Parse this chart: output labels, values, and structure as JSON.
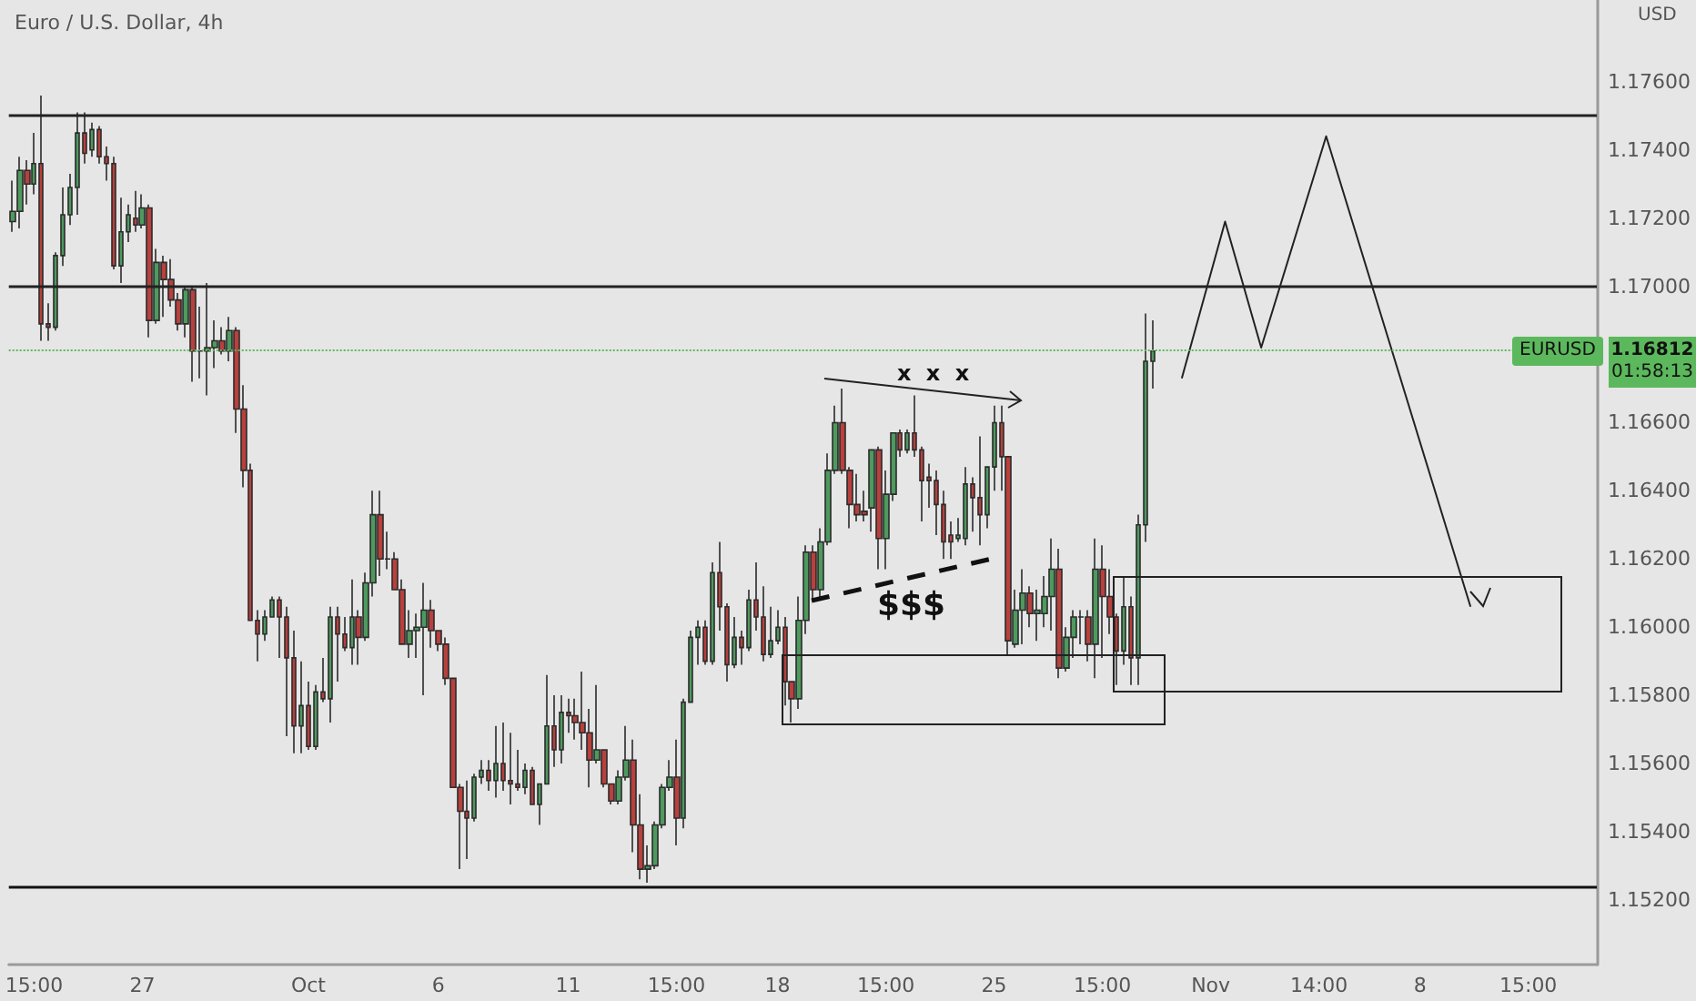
{
  "chart_data": {
    "type": "candlestick",
    "title": "Euro / U.S. Dollar, 4h",
    "ylabel": "USD",
    "annotations": [
      "x x x",
      "$$$",
      "1.16812",
      "01:58:13"
    ],
    "categories": [
      null,
      null,
      null,
      "15:00",
      null,
      null,
      null,
      null,
      null,
      null,
      null,
      null,
      null,
      null,
      null,
      null,
      null,
      null,
      "27",
      null,
      null,
      null,
      null,
      null,
      null,
      null,
      null,
      null,
      null,
      null,
      null,
      null,
      null,
      null,
      null,
      null,
      null,
      null,
      null,
      null,
      null,
      "Oct",
      null,
      null,
      null,
      null,
      null,
      null,
      null,
      null,
      null,
      null,
      null,
      null,
      null,
      null,
      null,
      null,
      null,
      "6",
      null,
      null,
      null,
      null,
      null,
      null,
      null,
      null,
      null,
      null,
      null,
      null,
      null,
      null,
      null,
      null,
      null,
      "11",
      null,
      null,
      null,
      null,
      null,
      null,
      null,
      null,
      null,
      null,
      null,
      null,
      null,
      null,
      "15:00",
      null,
      null,
      null,
      null,
      null,
      null,
      null,
      null,
      null,
      null,
      null,
      null,
      null,
      "18",
      null,
      null,
      null,
      null,
      null,
      null,
      null,
      null,
      null,
      null,
      null,
      null,
      null,
      null,
      "15:00",
      null,
      null,
      null,
      null,
      null,
      null,
      null,
      null,
      null,
      null,
      null,
      null,
      null,
      null,
      "25",
      null,
      null,
      null,
      null,
      null,
      null,
      null,
      null,
      null,
      null,
      null,
      null,
      null,
      null,
      "15:00",
      null,
      null,
      null,
      null,
      null,
      null,
      null,
      null,
      null,
      null,
      null,
      null,
      null,
      null,
      "Nov",
      null,
      null,
      null,
      null,
      null,
      null,
      null,
      null,
      null,
      null,
      null,
      null,
      null,
      null,
      "14:00",
      null,
      null,
      null,
      null,
      null,
      null,
      null,
      null,
      null,
      null,
      null,
      null,
      null,
      "8",
      null,
      null,
      null,
      null,
      null,
      null,
      null,
      null,
      null,
      null,
      null,
      null,
      null,
      null,
      "15:00",
      null,
      null,
      null,
      null,
      null,
      null,
      null,
      null,
      null
    ],
    "ohlc": [
      [
        1.1719,
        1.1731,
        1.1716,
        1.1722
      ],
      [
        1.1722,
        1.1738,
        1.1717,
        1.1734
      ],
      [
        1.1734,
        1.1737,
        1.1724,
        1.173
      ],
      [
        1.173,
        1.1745,
        1.1727,
        1.1736
      ],
      [
        1.1736,
        1.1756,
        1.1684,
        1.1689
      ],
      [
        1.1689,
        1.1695,
        1.1684,
        1.1688
      ],
      [
        1.1688,
        1.171,
        1.1687,
        1.1709
      ],
      [
        1.1709,
        1.1729,
        1.1706,
        1.1721
      ],
      [
        1.1721,
        1.1733,
        1.1718,
        1.1729
      ],
      [
        1.1729,
        1.1751,
        1.1721,
        1.1745
      ],
      [
        1.1745,
        1.1751,
        1.1736,
        1.1739
      ],
      [
        1.174,
        1.1748,
        1.1738,
        1.1746
      ],
      [
        1.1746,
        1.1747,
        1.1736,
        1.1738
      ],
      [
        1.1738,
        1.1741,
        1.1731,
        1.1736
      ],
      [
        1.1736,
        1.1738,
        1.1705,
        1.1706
      ],
      [
        1.1706,
        1.1726,
        1.1701,
        1.1716
      ],
      [
        1.1716,
        1.1724,
        1.1713,
        1.1721
      ],
      [
        1.172,
        1.1728,
        1.1716,
        1.1718
      ],
      [
        1.1718,
        1.1727,
        1.1717,
        1.1723
      ],
      [
        1.1723,
        1.1724,
        1.1685,
        1.169
      ],
      [
        1.169,
        1.1711,
        1.1689,
        1.1707
      ],
      [
        1.1707,
        1.1709,
        1.1691,
        1.1702
      ],
      [
        1.1702,
        1.1708,
        1.1694,
        1.1696
      ],
      [
        1.1696,
        1.1698,
        1.1687,
        1.1689
      ],
      [
        1.1689,
        1.17,
        1.1685,
        1.1699
      ],
      [
        1.1699,
        1.17,
        1.1672,
        1.1681
      ],
      [
        1.1681,
        1.1694,
        1.1673,
        1.1681
      ],
      [
        1.1681,
        1.1701,
        1.1668,
        1.1682
      ],
      [
        1.1682,
        1.169,
        1.1676,
        1.1684
      ],
      [
        1.1684,
        1.1688,
        1.168,
        1.1681
      ],
      [
        1.1681,
        1.1691,
        1.1678,
        1.1687
      ],
      [
        1.1687,
        1.1688,
        1.1657,
        1.1664
      ],
      [
        1.1664,
        1.1671,
        1.1641,
        1.1646
      ],
      [
        1.1646,
        1.1648,
        1.1602,
        1.1602
      ],
      [
        1.1602,
        1.1605,
        1.159,
        1.1598
      ],
      [
        1.1598,
        1.1605,
        1.1596,
        1.1603
      ],
      [
        1.1603,
        1.1609,
        1.1603,
        1.1608
      ],
      [
        1.1608,
        1.1609,
        1.1591,
        1.1603
      ],
      [
        1.1603,
        1.1606,
        1.1568,
        1.1591
      ],
      [
        1.1591,
        1.1599,
        1.1563,
        1.1571
      ],
      [
        1.1571,
        1.159,
        1.1563,
        1.1577
      ],
      [
        1.1577,
        1.1584,
        1.1564,
        1.1565
      ],
      [
        1.1565,
        1.1583,
        1.1564,
        1.1581
      ],
      [
        1.1581,
        1.1591,
        1.1578,
        1.1579
      ],
      [
        1.1579,
        1.1606,
        1.1572,
        1.1603
      ],
      [
        1.1603,
        1.1606,
        1.1584,
        1.1598
      ],
      [
        1.1598,
        1.1603,
        1.1593,
        1.1594
      ],
      [
        1.1594,
        1.1614,
        1.1589,
        1.1603
      ],
      [
        1.1603,
        1.1605,
        1.1589,
        1.1597
      ],
      [
        1.1597,
        1.1616,
        1.1596,
        1.1613
      ],
      [
        1.1613,
        1.164,
        1.1609,
        1.1633
      ],
      [
        1.1633,
        1.164,
        1.1615,
        1.162
      ],
      [
        1.162,
        1.1628,
        1.1617,
        1.162
      ],
      [
        1.162,
        1.1622,
        1.1611,
        1.1611
      ],
      [
        1.1611,
        1.1614,
        1.1595,
        1.1595
      ],
      [
        1.1595,
        1.1605,
        1.1591,
        1.1599
      ],
      [
        1.1599,
        1.1604,
        1.1591,
        1.16
      ],
      [
        1.16,
        1.1613,
        1.158,
        1.1605
      ],
      [
        1.1605,
        1.1608,
        1.1594,
        1.1599
      ],
      [
        1.1599,
        1.1599,
        1.1593,
        1.1595
      ],
      [
        1.1595,
        1.1597,
        1.1583,
        1.1585
      ],
      [
        1.1585,
        1.1585,
        1.1553,
        1.1553
      ],
      [
        1.1553,
        1.1554,
        1.1529,
        1.1546
      ],
      [
        1.1546,
        1.1555,
        1.1532,
        1.1544
      ],
      [
        1.1544,
        1.1557,
        1.1543,
        1.1556
      ],
      [
        1.1556,
        1.1561,
        1.1554,
        1.1558
      ],
      [
        1.1558,
        1.1561,
        1.1552,
        1.1555
      ],
      [
        1.1555,
        1.1571,
        1.155,
        1.156
      ],
      [
        1.156,
        1.1572,
        1.1552,
        1.1555
      ],
      [
        1.1555,
        1.1569,
        1.1548,
        1.1554
      ],
      [
        1.1554,
        1.1564,
        1.1552,
        1.1553
      ],
      [
        1.1553,
        1.156,
        1.1551,
        1.1558
      ],
      [
        1.1558,
        1.1559,
        1.1548,
        1.1548
      ],
      [
        1.1548,
        1.1554,
        1.1542,
        1.1554
      ],
      [
        1.1554,
        1.1586,
        1.1554,
        1.1571
      ],
      [
        1.1571,
        1.158,
        1.1559,
        1.1564
      ],
      [
        1.1564,
        1.158,
        1.156,
        1.1575
      ],
      [
        1.1575,
        1.1579,
        1.1569,
        1.1574
      ],
      [
        1.1574,
        1.1579,
        1.1567,
        1.1572
      ],
      [
        1.1572,
        1.1587,
        1.1564,
        1.1569
      ],
      [
        1.1569,
        1.1576,
        1.1553,
        1.1561
      ],
      [
        1.1561,
        1.1583,
        1.156,
        1.1564
      ],
      [
        1.1564,
        1.1564,
        1.1553,
        1.1554
      ],
      [
        1.1554,
        1.1554,
        1.1548,
        1.1549
      ],
      [
        1.1549,
        1.1558,
        1.1548,
        1.1556
      ],
      [
        1.1556,
        1.1571,
        1.1555,
        1.1561
      ],
      [
        1.1561,
        1.1567,
        1.1534,
        1.1542
      ],
      [
        1.1542,
        1.1551,
        1.1526,
        1.1529
      ],
      [
        1.1529,
        1.1536,
        1.1525,
        1.153
      ],
      [
        1.153,
        1.1543,
        1.1529,
        1.1542
      ],
      [
        1.1542,
        1.1554,
        1.1541,
        1.1553
      ],
      [
        1.1553,
        1.1561,
        1.1552,
        1.1556
      ],
      [
        1.1556,
        1.1567,
        1.1536,
        1.1544
      ],
      [
        1.1544,
        1.1579,
        1.1541,
        1.1578
      ],
      [
        1.1578,
        1.1599,
        1.1578,
        1.1597
      ],
      [
        1.1597,
        1.1602,
        1.1589,
        1.16
      ],
      [
        1.16,
        1.1602,
        1.1589,
        1.159
      ],
      [
        1.159,
        1.1619,
        1.1589,
        1.1616
      ],
      [
        1.1616,
        1.1625,
        1.1599,
        1.1606
      ],
      [
        1.1606,
        1.1607,
        1.1584,
        1.1589
      ],
      [
        1.1589,
        1.1603,
        1.1588,
        1.1597
      ],
      [
        1.1597,
        1.1599,
        1.1589,
        1.1594
      ],
      [
        1.1594,
        1.1611,
        1.1593,
        1.1608
      ],
      [
        1.1608,
        1.1619,
        1.1599,
        1.1603
      ],
      [
        1.1603,
        1.1612,
        1.159,
        1.1592
      ],
      [
        1.1592,
        1.1606,
        1.1591,
        1.1596
      ],
      [
        1.1596,
        1.1605,
        1.1595,
        1.16
      ],
      [
        1.16,
        1.1603,
        1.1577,
        1.1584
      ],
      [
        1.1584,
        1.1584,
        1.1572,
        1.1579
      ],
      [
        1.1579,
        1.1609,
        1.1576,
        1.1602
      ],
      [
        1.1602,
        1.1624,
        1.1598,
        1.1622
      ],
      [
        1.1622,
        1.1624,
        1.1608,
        1.1611
      ],
      [
        1.1611,
        1.1629,
        1.1608,
        1.1625
      ],
      [
        1.1625,
        1.1651,
        1.1624,
        1.1646
      ],
      [
        1.1646,
        1.1665,
        1.1645,
        1.166
      ],
      [
        1.166,
        1.167,
        1.1645,
        1.1646
      ],
      [
        1.1646,
        1.1647,
        1.1629,
        1.1636
      ],
      [
        1.1636,
        1.1645,
        1.1631,
        1.1633
      ],
      [
        1.1634,
        1.164,
        1.1631,
        1.1633
      ],
      [
        1.1635,
        1.1652,
        1.1628,
        1.1652
      ],
      [
        1.1652,
        1.1653,
        1.1617,
        1.1626
      ],
      [
        1.1626,
        1.1646,
        1.1617,
        1.1639
      ],
      [
        1.1639,
        1.1657,
        1.1637,
        1.1657
      ],
      [
        1.1657,
        1.1658,
        1.165,
        1.1652
      ],
      [
        1.1652,
        1.1658,
        1.1651,
        1.1657
      ],
      [
        1.1657,
        1.1668,
        1.165,
        1.1652
      ],
      [
        1.1652,
        1.1653,
        1.1631,
        1.1643
      ],
      [
        1.1644,
        1.1648,
        1.1635,
        1.1643
      ],
      [
        1.1643,
        1.1646,
        1.1627,
        1.1636
      ],
      [
        1.1636,
        1.164,
        1.162,
        1.1625
      ],
      [
        1.1627,
        1.1631,
        1.162,
        1.1625
      ],
      [
        1.1626,
        1.1632,
        1.1625,
        1.1627
      ],
      [
        1.1626,
        1.1647,
        1.1624,
        1.1642
      ],
      [
        1.1642,
        1.1644,
        1.1628,
        1.1638
      ],
      [
        1.1638,
        1.1656,
        1.1624,
        1.1633
      ],
      [
        1.1633,
        1.1647,
        1.1629,
        1.1647
      ],
      [
        1.1647,
        1.1665,
        1.164,
        1.166
      ],
      [
        1.166,
        1.1665,
        1.164,
        1.165
      ],
      [
        1.165,
        1.165,
        1.1592,
        1.1596
      ],
      [
        1.1595,
        1.1611,
        1.1594,
        1.1605
      ],
      [
        1.1605,
        1.1617,
        1.1595,
        1.161
      ],
      [
        1.161,
        1.1612,
        1.16,
        1.1604
      ],
      [
        1.1604,
        1.1611,
        1.1596,
        1.1605
      ],
      [
        1.1604,
        1.1615,
        1.16,
        1.1609
      ],
      [
        1.1609,
        1.1626,
        1.1599,
        1.1617
      ],
      [
        1.1617,
        1.1623,
        1.1585,
        1.1588
      ],
      [
        1.1588,
        1.16,
        1.1587,
        1.1597
      ],
      [
        1.1597,
        1.1605,
        1.1591,
        1.1603
      ],
      [
        1.1603,
        1.1605,
        1.1595,
        1.1603
      ],
      [
        1.1603,
        1.1605,
        1.159,
        1.1595
      ],
      [
        1.1595,
        1.1626,
        1.1585,
        1.1617
      ],
      [
        1.1617,
        1.1624,
        1.1591,
        1.1609
      ],
      [
        1.1609,
        1.1617,
        1.1598,
        1.1603
      ],
      [
        1.1603,
        1.1604,
        1.1583,
        1.1593
      ],
      [
        1.1593,
        1.1615,
        1.1589,
        1.1606
      ],
      [
        1.1606,
        1.1609,
        1.1583,
        1.1591
      ],
      [
        1.1591,
        1.1633,
        1.1583,
        1.163
      ],
      [
        1.163,
        1.1692,
        1.1625,
        1.1678
      ],
      [
        1.1678,
        1.169,
        1.167,
        1.1681
      ],
      null,
      null,
      null,
      null,
      null,
      null,
      null,
      null,
      null,
      null,
      null,
      null,
      null,
      null,
      null,
      null,
      null,
      null,
      null,
      null,
      null,
      null,
      null,
      null,
      null,
      null,
      null,
      null,
      null,
      null,
      null,
      null,
      null,
      null,
      null,
      null,
      null,
      null,
      null,
      null,
      null,
      null,
      null,
      null,
      null,
      null,
      null,
      null,
      null,
      null,
      null,
      null,
      null,
      null,
      null,
      null,
      null,
      null,
      null,
      null,
      null
    ],
    "series": [
      {
        "type": "line",
        "color": "#222222",
        "line_style": "solid",
        "values": [
          null,
          null,
          null,
          null,
          null,
          null,
          null,
          null,
          null,
          null,
          null,
          null,
          null,
          null,
          null,
          null,
          null,
          null,
          null,
          null,
          null,
          null,
          null,
          null,
          null,
          null,
          null,
          null,
          null,
          null,
          null,
          null,
          null,
          null,
          null,
          null,
          null,
          null,
          null,
          null,
          null,
          null,
          null,
          null,
          null,
          null,
          null,
          null,
          null,
          null,
          null,
          null,
          null,
          null,
          null,
          null,
          null,
          null,
          null,
          null,
          null,
          null,
          null,
          null,
          null,
          null,
          null,
          null,
          null,
          null,
          null,
          null,
          null,
          null,
          null,
          null,
          null,
          null,
          null,
          null,
          null,
          null,
          null,
          null,
          null,
          null,
          null,
          null,
          null,
          null,
          null,
          null,
          null,
          null,
          null,
          null,
          null,
          null,
          null,
          null,
          null,
          null,
          null,
          null,
          null,
          null,
          null,
          null,
          null,
          null,
          null,
          null,
          null,
          null,
          null,
          null,
          null,
          null,
          null,
          null,
          null,
          null,
          null,
          null,
          null,
          null,
          null,
          null,
          null,
          null,
          null,
          null,
          null,
          null,
          null,
          null,
          null,
          null,
          null,
          null,
          null,
          null,
          null,
          null,
          null,
          null,
          null,
          null,
          null,
          null,
          null,
          null,
          null,
          null,
          null,
          null,
          null,
          null,
          null,
          null,
          null,
          null,
          1.1673,
          null,
          null,
          null,
          null,
          null,
          1.1719,
          null,
          null,
          null,
          null,
          1.1682,
          null,
          null,
          null,
          null,
          null,
          null,
          null,
          null,
          1.1744,
          null,
          null,
          null,
          null,
          null,
          null,
          null,
          null,
          null,
          null,
          null,
          null,
          null,
          null,
          null,
          null,
          null,
          null,
          null,
          1.1606,
          null,
          null,
          null,
          null,
          null,
          null,
          null,
          null,
          null,
          null,
          null,
          null,
          null,
          null,
          null,
          null,
          null
        ]
      }
    ],
    "marker": "none",
    "ylim": [
      1.1501,
      1.1784
    ],
    "yticks": [
      {
        "value": 1.152,
        "label": "1.15200"
      },
      {
        "value": 1.154,
        "label": "1.15400"
      },
      {
        "value": 1.156,
        "label": "1.15600"
      },
      {
        "value": 1.158,
        "label": "1.15800"
      },
      {
        "value": 1.16,
        "label": "1.16000"
      },
      {
        "value": 1.162,
        "label": "1.16200"
      },
      {
        "value": 1.164,
        "label": "1.16400"
      },
      {
        "value": 1.166,
        "label": "1.16600"
      },
      {
        "value": 1.17,
        "label": "1.17000"
      },
      {
        "value": 1.172,
        "label": "1.17200"
      },
      {
        "value": 1.174,
        "label": "1.17400"
      },
      {
        "value": 1.176,
        "label": "1.17600"
      }
    ],
    "ref_lines": [
      {
        "axis": "y",
        "value": 1.175,
        "label": null,
        "color": "#222222",
        "line_style": "solid"
      },
      {
        "axis": "y",
        "value": 1.17,
        "label": null,
        "color": "#222222",
        "line_style": "solid"
      },
      {
        "axis": "y",
        "value": 1.1524,
        "label": null,
        "color": "#111111",
        "line_style": "solid"
      },
      {
        "axis": "y",
        "value": 1.16812,
        "label": "EURUSD",
        "color": "#5cb85c",
        "line_style": "dotted"
      }
    ]
  }
}
